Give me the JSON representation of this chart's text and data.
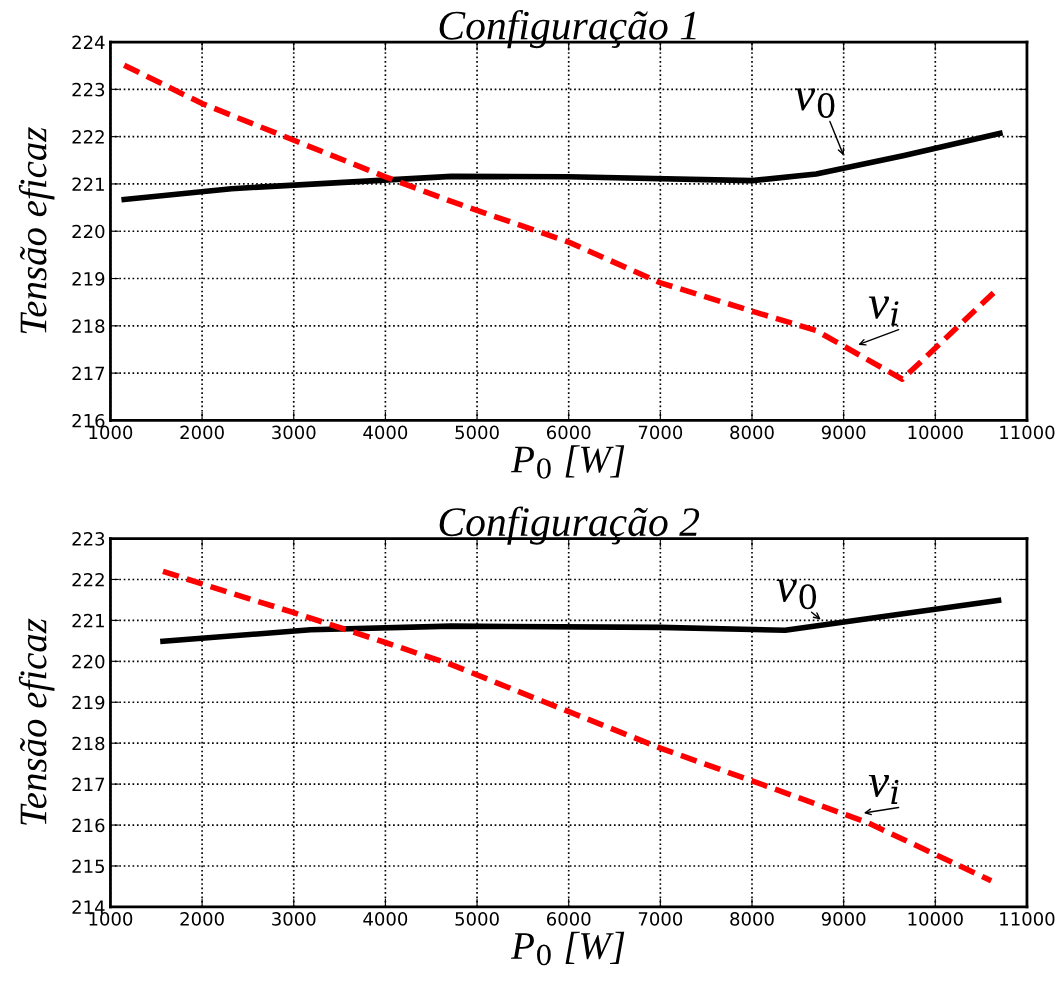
{
  "chart_data": [
    {
      "type": "line",
      "title": "Configuração 1",
      "xlabel": "P$_{0}$ [W]",
      "ylabel": "Tensão eficaz",
      "xlim": [
        1000,
        11000
      ],
      "xticks": [
        1000,
        2000,
        3000,
        4000,
        5000,
        6000,
        7000,
        8000,
        9000,
        10000,
        11000
      ],
      "ylim": [
        216,
        224
      ],
      "yticks": [
        216,
        217,
        218,
        219,
        220,
        221,
        222,
        223,
        224
      ],
      "grid": true,
      "legend": false,
      "series": [
        {
          "color": "#000000",
          "line_style": "solid",
          "x": [
            1150,
            2320,
            4720,
            6000,
            8000,
            8700,
            9660,
            10705
          ],
          "values": [
            220.67,
            220.9,
            221.16,
            221.15,
            221.07,
            221.21,
            221.6,
            222.07
          ]
        },
        {
          "color": "#ff0000",
          "line_style": "dashed",
          "x": [
            1150,
            2000,
            4000,
            4720,
            6000,
            7000,
            8000,
            8700,
            9640,
            10670
          ],
          "values": [
            223.51,
            222.7,
            221.15,
            220.63,
            219.77,
            218.91,
            218.31,
            217.9,
            216.87,
            218.76
          ]
        }
      ],
      "annotations": [
        "v$_{0}$",
        "v$_{i}$"
      ]
    },
    {
      "type": "line",
      "title": "Configuração 2",
      "xlabel": "P$_{0}$ [W]",
      "ylabel": "Tensão eficaz",
      "xlim": [
        1000,
        11000
      ],
      "xticks": [
        1000,
        2000,
        3000,
        4000,
        5000,
        6000,
        7000,
        8000,
        9000,
        10000,
        11000
      ],
      "ylim": [
        214,
        223
      ],
      "yticks": [
        214,
        215,
        216,
        217,
        218,
        219,
        220,
        221,
        222,
        223
      ],
      "grid": true,
      "legend": false,
      "series": [
        {
          "color": "#000000",
          "line_style": "solid",
          "x": [
            1573,
            3184,
            4720,
            7000,
            8362,
            10690
          ],
          "values": [
            220.49,
            220.77,
            220.86,
            220.83,
            220.76,
            221.49
          ]
        },
        {
          "color": "#ff0000",
          "line_style": "dashed",
          "x": [
            1573,
            2000,
            3000,
            4000,
            4720,
            5710,
            7000,
            8000,
            9250,
            10610
          ],
          "values": [
            222.2,
            221.89,
            221.19,
            220.46,
            219.92,
            219.03,
            217.88,
            217.08,
            216.07,
            214.64
          ]
        }
      ],
      "annotations": [
        "v$_{0}$",
        "v$_{i}$"
      ]
    }
  ]
}
